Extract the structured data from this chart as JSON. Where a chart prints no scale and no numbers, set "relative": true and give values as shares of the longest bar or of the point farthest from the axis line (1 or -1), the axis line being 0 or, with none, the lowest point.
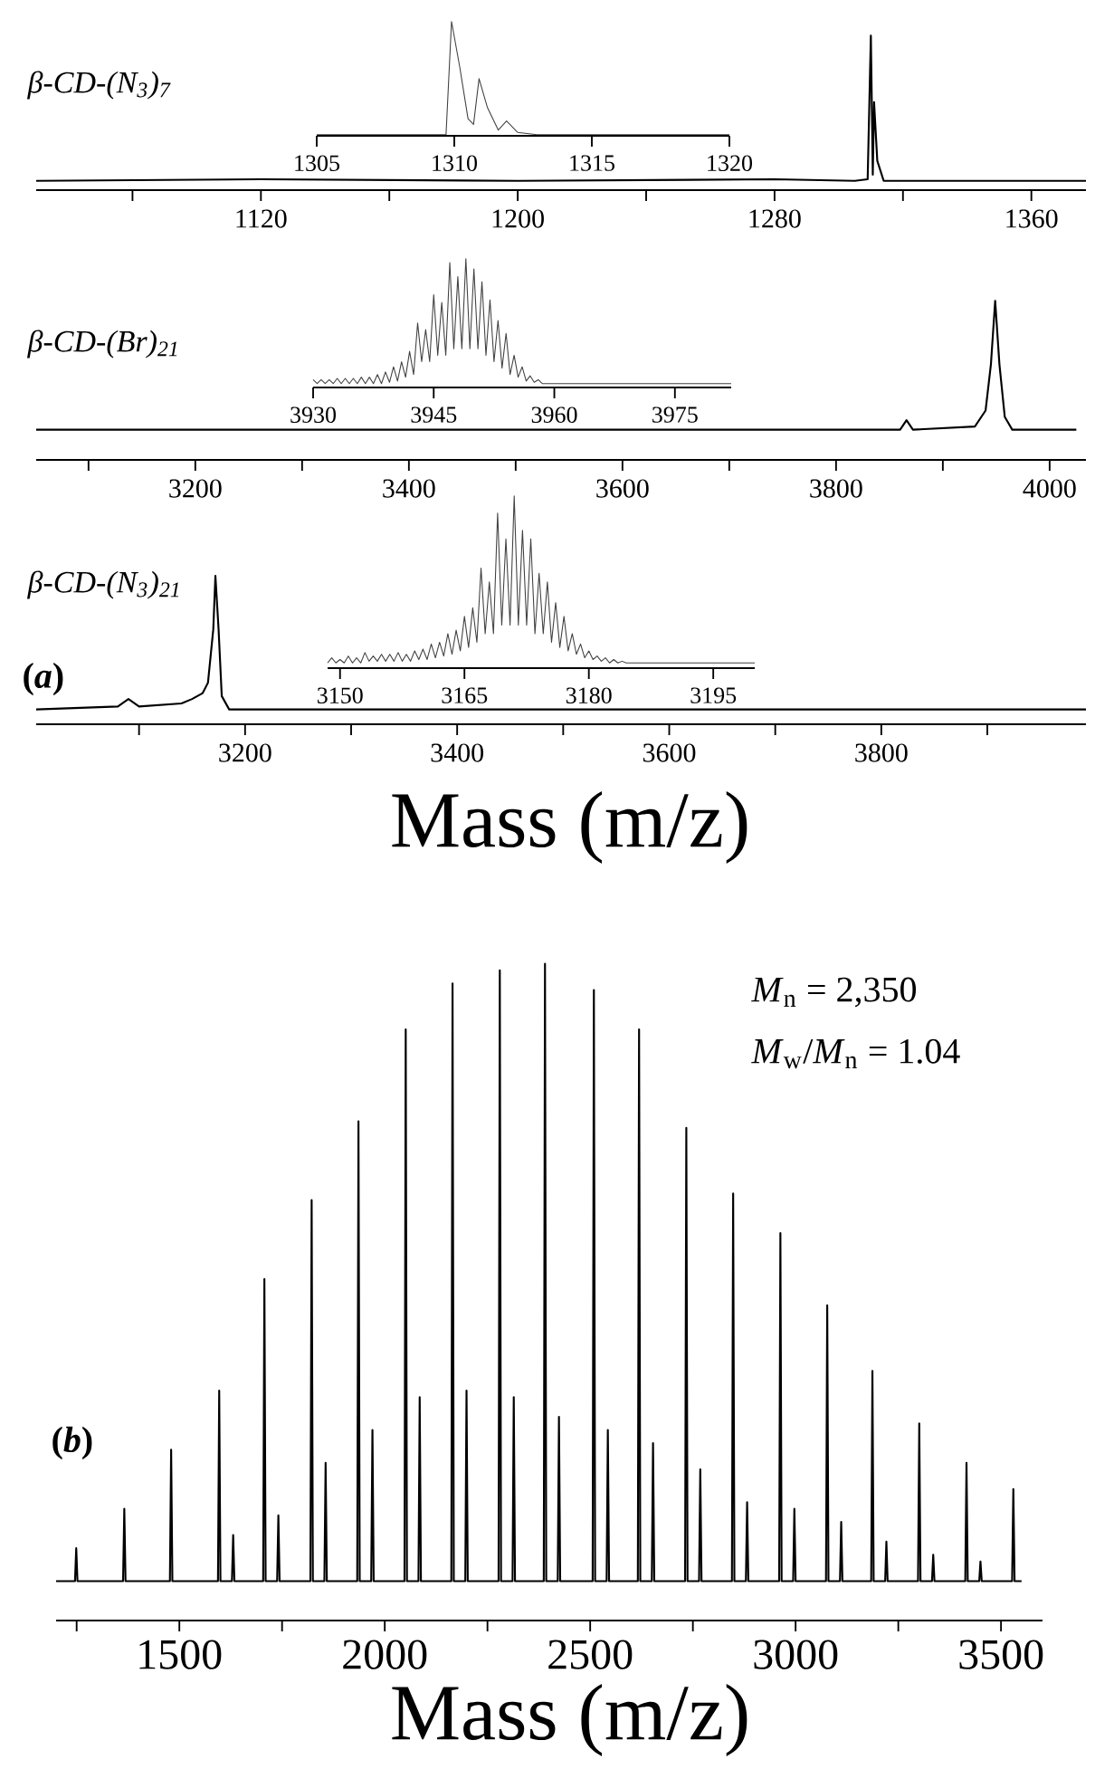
{
  "chart_data": [
    {
      "type": "line",
      "relative": true,
      "title": "β-CD-(N$_{3}$)$_{7}$",
      "xlim": [
        1050,
        1377
      ],
      "xticks": [
        {
          "value": 1080,
          "label": null
        },
        1120,
        {
          "value": 1160,
          "label": null
        },
        1200,
        {
          "value": 1240,
          "label": null
        },
        1280,
        {
          "value": 1320,
          "label": null
        },
        1360
      ],
      "series": [
        {
          "color": "#000000",
          "x": [
            1050,
            1120,
            1200,
            1280,
            1305,
            1309,
            1310,
            1310.6,
            1311,
            1312,
            1314,
            1377
          ],
          "values": [
            0.06,
            0.07,
            0.06,
            0.07,
            0.06,
            0.07,
            1,
            0.1,
            0.57,
            0.19,
            0.06,
            0.06
          ]
        }
      ]
    },
    {
      "type": "line",
      "relative": true,
      "xlim": [
        1305,
        1320
      ],
      "xticks": [
        1305,
        1310,
        1315,
        1320
      ],
      "series": [
        {
          "color": "#404040",
          "x": [
            1305,
            1309.7,
            1309.9,
            1310.2,
            1310.5,
            1310.7,
            1310.9,
            1311.2,
            1311.6,
            1311.9,
            1312.3,
            1313,
            1320
          ],
          "values": [
            0.01,
            0.01,
            1,
            0.6,
            0.15,
            0.1,
            0.5,
            0.25,
            0.05,
            0.13,
            0.03,
            0.01,
            0.01
          ]
        }
      ]
    },
    {
      "type": "line",
      "relative": true,
      "title": "β-CD-(Br)$_{21}$",
      "xlim": [
        3051,
        4034
      ],
      "xticks": [
        {
          "value": 3100,
          "label": null
        },
        3200,
        {
          "value": 3300,
          "label": null
        },
        3400,
        {
          "value": 3500,
          "label": null
        },
        3600,
        {
          "value": 3700,
          "label": null
        },
        3800,
        {
          "value": 3900,
          "label": null
        },
        4000
      ],
      "series": [
        {
          "color": "#000000",
          "x": [
            3051,
            3400,
            3860,
            3866,
            3872,
            3930,
            3940,
            3945,
            3949,
            3953,
            3958,
            3965,
            4025
          ],
          "values": [
            0.19,
            0.19,
            0.19,
            0.25,
            0.19,
            0.21,
            0.31,
            0.6,
            1,
            0.6,
            0.27,
            0.19,
            0.19
          ]
        }
      ]
    },
    {
      "type": "line",
      "relative": true,
      "xlim": [
        3930,
        3982
      ],
      "xticks": [
        3930,
        3945,
        3960,
        3975
      ],
      "series": [
        {
          "color": "#404040",
          "x": [
            3930,
            3930.5,
            3931,
            3931.5,
            3932,
            3932.5,
            3933,
            3933.5,
            3934,
            3934.5,
            3935,
            3935.5,
            3936,
            3936.5,
            3937,
            3937.5,
            3938,
            3938.5,
            3939,
            3939.5,
            3940,
            3940.5,
            3941,
            3941.5,
            3942,
            3942.5,
            3943,
            3943.5,
            3944,
            3944.5,
            3945,
            3945.5,
            3946,
            3946.5,
            3947,
            3947.5,
            3948,
            3948.5,
            3949,
            3949.5,
            3950,
            3950.5,
            3951,
            3951.5,
            3952,
            3952.5,
            3953,
            3953.5,
            3954,
            3954.5,
            3955,
            3955.5,
            3956,
            3956.5,
            3957,
            3957.5,
            3958,
            3958.5,
            3982
          ],
          "values": [
            0.06,
            0.03,
            0.06,
            0.03,
            0.06,
            0.03,
            0.07,
            0.03,
            0.07,
            0.03,
            0.07,
            0.03,
            0.08,
            0.03,
            0.08,
            0.03,
            0.1,
            0.03,
            0.12,
            0.04,
            0.16,
            0.05,
            0.2,
            0.08,
            0.28,
            0.1,
            0.5,
            0.2,
            0.45,
            0.2,
            0.72,
            0.25,
            0.66,
            0.25,
            0.97,
            0.3,
            0.86,
            0.3,
            1,
            0.3,
            0.92,
            0.3,
            0.82,
            0.25,
            0.68,
            0.2,
            0.52,
            0.15,
            0.42,
            0.1,
            0.25,
            0.08,
            0.16,
            0.05,
            0.09,
            0.04,
            0.06,
            0.03,
            0.03
          ]
        }
      ]
    },
    {
      "type": "line",
      "relative": true,
      "title": "β-CD-(N$_{3}$)$_{21}$",
      "xlabel": "Mass (m/z)",
      "annotations": [
        "(*a*)"
      ],
      "xlim": [
        3003,
        3993
      ],
      "xticks": [
        {
          "value": 3100,
          "label": null
        },
        3200,
        {
          "value": 3300,
          "label": null
        },
        3400,
        {
          "value": 3500,
          "label": null
        },
        3600,
        {
          "value": 3700,
          "label": null
        },
        3800,
        {
          "value": 3900,
          "label": null
        }
      ],
      "series": [
        {
          "color": "#000000",
          "x": [
            3003,
            3080,
            3090,
            3100,
            3140,
            3150,
            3160,
            3165,
            3170,
            3172,
            3175,
            3178,
            3185,
            3500,
            3993
          ],
          "values": [
            0.1,
            0.12,
            0.17,
            0.12,
            0.14,
            0.17,
            0.21,
            0.28,
            0.64,
            1,
            0.64,
            0.19,
            0.1,
            0.1,
            0.1
          ]
        }
      ]
    },
    {
      "type": "line",
      "relative": true,
      "xlim": [
        3148.5,
        3200
      ],
      "xticks": [
        3150,
        3165,
        3180,
        3195
      ],
      "series": [
        {
          "color": "#404040",
          "x": [
            3148.5,
            3149,
            3149.5,
            3150,
            3150.5,
            3151,
            3151.5,
            3152,
            3152.5,
            3153,
            3153.5,
            3154,
            3154.5,
            3155,
            3155.5,
            3156,
            3156.5,
            3157,
            3157.5,
            3158,
            3158.5,
            3159,
            3159.5,
            3160,
            3160.5,
            3161,
            3161.5,
            3162,
            3162.5,
            3163,
            3163.5,
            3164,
            3164.5,
            3165,
            3165.5,
            3166,
            3166.5,
            3167,
            3167.5,
            3168,
            3168.5,
            3169,
            3169.5,
            3170,
            3170.5,
            3171,
            3171.5,
            3172,
            3172.5,
            3173,
            3173.5,
            3174,
            3174.5,
            3175,
            3175.5,
            3176,
            3176.5,
            3177,
            3177.5,
            3178,
            3178.5,
            3179,
            3179.5,
            3180,
            3180.5,
            3181,
            3181.5,
            3182,
            3182.5,
            3183,
            3183.5,
            3184,
            3184.5,
            3185,
            3185.5,
            3200
          ],
          "values": [
            0.03,
            0.06,
            0.03,
            0.05,
            0.03,
            0.07,
            0.03,
            0.06,
            0.03,
            0.09,
            0.04,
            0.07,
            0.04,
            0.08,
            0.04,
            0.08,
            0.04,
            0.09,
            0.04,
            0.08,
            0.04,
            0.1,
            0.05,
            0.11,
            0.05,
            0.14,
            0.06,
            0.15,
            0.07,
            0.2,
            0.08,
            0.22,
            0.1,
            0.3,
            0.12,
            0.35,
            0.15,
            0.58,
            0.2,
            0.5,
            0.2,
            0.9,
            0.25,
            0.75,
            0.25,
            1,
            0.25,
            0.8,
            0.25,
            0.75,
            0.2,
            0.55,
            0.2,
            0.5,
            0.15,
            0.38,
            0.12,
            0.3,
            0.1,
            0.2,
            0.08,
            0.14,
            0.06,
            0.1,
            0.05,
            0.07,
            0.04,
            0.06,
            0.03,
            0.05,
            0.03,
            0.04,
            0.03,
            0.03,
            0.03,
            0.03
          ]
        }
      ]
    },
    {
      "type": "line",
      "relative": true,
      "xlabel": "Mass (m/z)",
      "annotations": [
        "(*b*)",
        "*M*$_{n}$ = 2,350",
        "*M*$_{w}$/*M*$_{n}$ = 1.04"
      ],
      "xlim": [
        1200,
        3601
      ],
      "xticks": [
        {
          "value": 1250,
          "label": null
        },
        1500,
        {
          "value": 1750,
          "label": null
        },
        2000,
        {
          "value": 2250,
          "label": null
        },
        2500,
        {
          "value": 2750,
          "label": null
        },
        3000,
        {
          "value": 3250,
          "label": null
        },
        3500
      ],
      "series": [
        {
          "color": "#000000",
          "x": [
            1200,
            1246,
            1249,
            1252,
            1363,
            1366,
            1369,
            1477,
            1480,
            1483,
            1594,
            1597,
            1600,
            1628,
            1631,
            1634,
            1704,
            1707,
            1710,
            1738,
            1741,
            1744,
            1819,
            1822,
            1825,
            1853,
            1856,
            1859,
            1933,
            1936,
            1939,
            1967,
            1970,
            1973,
            2048,
            2051,
            2054,
            2082,
            2085,
            2088,
            2162,
            2165,
            2168,
            2196,
            2199,
            2202,
            2277,
            2280,
            2283,
            2311,
            2314,
            2317,
            2387,
            2390,
            2393,
            2421,
            2424,
            2427,
            2506,
            2509,
            2512,
            2540,
            2543,
            2546,
            2616,
            2619,
            2622,
            2650,
            2653,
            2656,
            2731,
            2734,
            2737,
            2765,
            2768,
            2771,
            2845,
            2848,
            2851,
            2879,
            2882,
            2885,
            2960,
            2963,
            2966,
            2994,
            2997,
            3000,
            3074,
            3077,
            3080,
            3108,
            3111,
            3114,
            3184,
            3187,
            3190,
            3218,
            3221,
            3224,
            3298,
            3301,
            3304,
            3332,
            3335,
            3338,
            3413,
            3416,
            3419,
            3447,
            3450,
            3453,
            3527,
            3530,
            3533,
            3550
          ],
          "values": [
            0.06,
            0.06,
            0.11,
            0.06,
            0.06,
            0.17,
            0.06,
            0.06,
            0.26,
            0.06,
            0.06,
            0.35,
            0.06,
            0.06,
            0.13,
            0.06,
            0.06,
            0.52,
            0.06,
            0.06,
            0.16,
            0.06,
            0.06,
            0.64,
            0.06,
            0.06,
            0.24,
            0.06,
            0.06,
            0.76,
            0.06,
            0.06,
            0.29,
            0.06,
            0.06,
            0.9,
            0.06,
            0.06,
            0.34,
            0.06,
            0.06,
            0.97,
            0.06,
            0.06,
            0.35,
            0.06,
            0.06,
            0.99,
            0.06,
            0.06,
            0.34,
            0.06,
            0.06,
            1,
            0.06,
            0.06,
            0.31,
            0.06,
            0.06,
            0.96,
            0.06,
            0.06,
            0.29,
            0.06,
            0.06,
            0.9,
            0.06,
            0.06,
            0.27,
            0.06,
            0.06,
            0.75,
            0.06,
            0.06,
            0.23,
            0.06,
            0.06,
            0.65,
            0.06,
            0.06,
            0.18,
            0.06,
            0.06,
            0.59,
            0.06,
            0.06,
            0.17,
            0.06,
            0.06,
            0.48,
            0.06,
            0.06,
            0.15,
            0.06,
            0.06,
            0.38,
            0.06,
            0.06,
            0.12,
            0.06,
            0.06,
            0.3,
            0.06,
            0.06,
            0.1,
            0.06,
            0.06,
            0.24,
            0.06,
            0.06,
            0.09,
            0.06,
            0.06,
            0.2,
            0.06,
            0.06
          ]
        }
      ]
    }
  ]
}
